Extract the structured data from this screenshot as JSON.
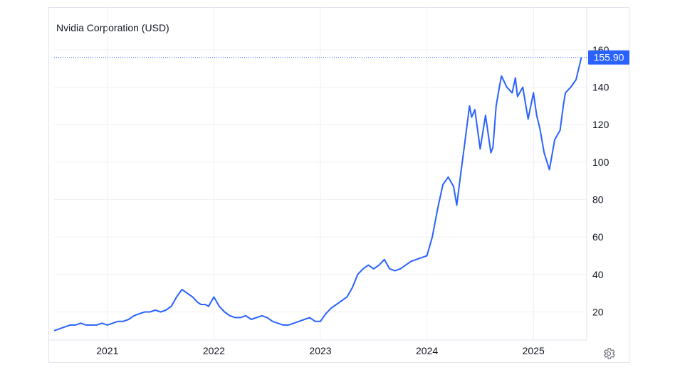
{
  "chart_data": {
    "type": "line",
    "title": "Nvidia Corporation (USD)",
    "xlabel": "",
    "ylabel": "",
    "x_ticks": [
      "2021",
      "2022",
      "2023",
      "2024",
      "2025"
    ],
    "y_ticks": [
      20,
      40,
      60,
      80,
      100,
      120,
      140,
      160
    ],
    "xlim": [
      2020.5,
      2025.5
    ],
    "ylim": [
      5,
      163
    ],
    "grid": true,
    "last_value_label": "155.90",
    "line_color": "#2962ff",
    "series": [
      {
        "x": [
          2020.5,
          2020.55,
          2020.6,
          2020.65,
          2020.7,
          2020.75,
          2020.8,
          2020.85,
          2020.9,
          2020.95,
          2021.0,
          2021.05,
          2021.1,
          2021.15,
          2021.2,
          2021.25,
          2021.3,
          2021.35,
          2021.4,
          2021.45,
          2021.5,
          2021.55,
          2021.6,
          2021.65,
          2021.7,
          2021.75,
          2021.8,
          2021.85,
          2021.88,
          2021.92,
          2021.95,
          2022.0,
          2022.05,
          2022.1,
          2022.15,
          2022.2,
          2022.25,
          2022.3,
          2022.35,
          2022.4,
          2022.45,
          2022.5,
          2022.55,
          2022.6,
          2022.65,
          2022.7,
          2022.75,
          2022.8,
          2022.85,
          2022.9,
          2022.95,
          2023.0,
          2023.05,
          2023.1,
          2023.15,
          2023.2,
          2023.25,
          2023.3,
          2023.35,
          2023.4,
          2023.45,
          2023.5,
          2023.55,
          2023.6,
          2023.65,
          2023.7,
          2023.75,
          2023.8,
          2023.85,
          2023.9,
          2023.95,
          2024.0,
          2024.05,
          2024.1,
          2024.15,
          2024.2,
          2024.25,
          2024.28,
          2024.32,
          2024.35,
          2024.4,
          2024.42,
          2024.45,
          2024.5,
          2024.55,
          2024.6,
          2024.62,
          2024.65,
          2024.68,
          2024.7,
          2024.75,
          2024.8,
          2024.83,
          2024.85,
          2024.9,
          2024.95,
          2025.0,
          2025.03,
          2025.06,
          2025.1,
          2025.15,
          2025.2,
          2025.25,
          2025.28,
          2025.3,
          2025.35,
          2025.4,
          2025.45
        ],
        "values": [
          10,
          11,
          12,
          13,
          13,
          14,
          13,
          13,
          13,
          14,
          13,
          14,
          15,
          15,
          16,
          18,
          19,
          20,
          20,
          21,
          20,
          21,
          23,
          28,
          32,
          30,
          28,
          25,
          24,
          24,
          23,
          28,
          23,
          20,
          18,
          17,
          17,
          18,
          16,
          17,
          18,
          17,
          15,
          14,
          13,
          13,
          14,
          15,
          16,
          17,
          15,
          15,
          19,
          22,
          24,
          26,
          28,
          33,
          40,
          43,
          45,
          43,
          45,
          48,
          43,
          42,
          43,
          45,
          47,
          48,
          49,
          50,
          60,
          75,
          88,
          92,
          87,
          77,
          95,
          108,
          130,
          124,
          128,
          107,
          125,
          105,
          108,
          130,
          140,
          146,
          140,
          137,
          145,
          135,
          140,
          123,
          137,
          125,
          118,
          105,
          96,
          112,
          117,
          130,
          137,
          140,
          144,
          155.9
        ]
      }
    ]
  },
  "icons": {
    "settings": "gear-icon"
  }
}
